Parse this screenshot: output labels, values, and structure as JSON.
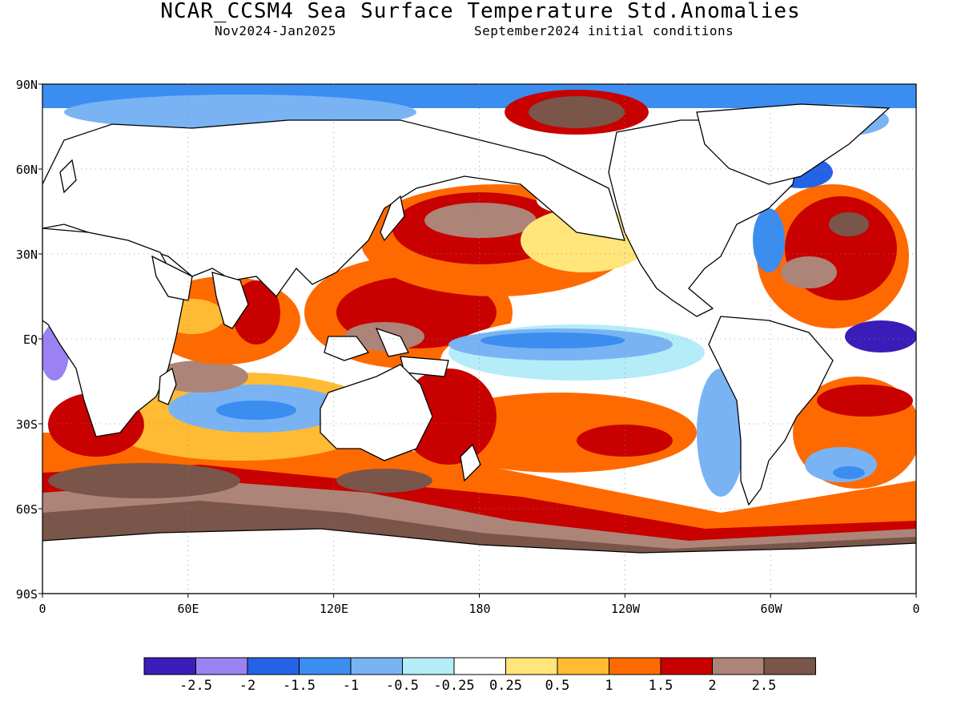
{
  "header": {
    "title": "NCAR_CCSM4 Sea Surface Temperature Std.Anomalies",
    "period": "Nov2024-Jan2025",
    "init": "September2024 initial conditions"
  },
  "map": {
    "lat_labels": [
      "90N",
      "60N",
      "30N",
      "EQ",
      "30S",
      "60S",
      "90S"
    ],
    "lon_labels": [
      "0",
      "60E",
      "120E",
      "180",
      "120W",
      "60W",
      "0"
    ]
  },
  "legend": {
    "colors": [
      "#3a1db8",
      "#9a82f2",
      "#2563e6",
      "#3b8df0",
      "#79b3f3",
      "#b4ecf8",
      "#ffffff",
      "#ffe57a",
      "#ffbb33",
      "#ff6a00",
      "#c80000",
      "#ad8478",
      "#7a554a"
    ],
    "labels": [
      "-2.5",
      "-2",
      "-1.5",
      "-1",
      "-0.5",
      "-0.25",
      "0.25",
      "0.5",
      "1",
      "1.5",
      "2",
      "2.5"
    ]
  }
}
